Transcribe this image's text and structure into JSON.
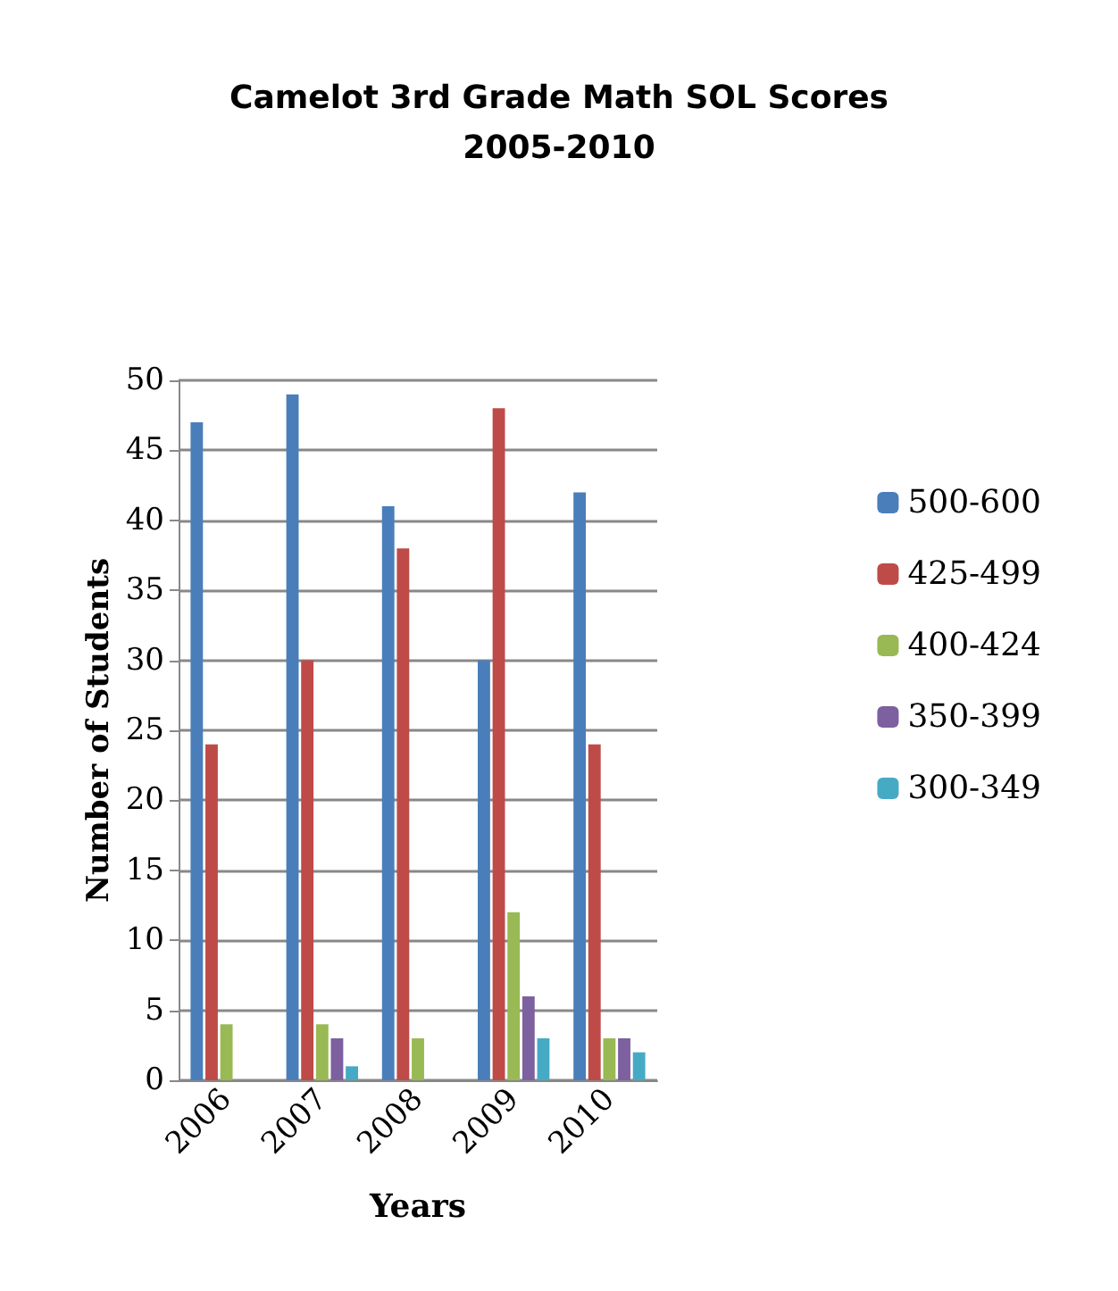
{
  "chart_data": {
    "type": "bar",
    "title": "Camelot 3rd Grade Math SOL Scores\n2005-2010",
    "xlabel": "Years",
    "ylabel": "Number of Students",
    "categories": [
      "2006",
      "2007",
      "2008",
      "2009",
      "2010"
    ],
    "series": [
      {
        "name": "500-600",
        "color": "#4a7ebb",
        "values": [
          47,
          49,
          41,
          30,
          42
        ]
      },
      {
        "name": "425-499",
        "color": "#be4b48",
        "values": [
          24,
          30,
          38,
          48,
          24
        ]
      },
      {
        "name": "400-424",
        "color": "#98b954",
        "values": [
          4,
          4,
          3,
          12,
          3
        ]
      },
      {
        "name": "350-399",
        "color": "#7d60a0",
        "values": [
          0,
          3,
          0,
          6,
          3
        ]
      },
      {
        "name": "300-349",
        "color": "#46aac5",
        "values": [
          0,
          1,
          0,
          3,
          2
        ]
      }
    ],
    "ylim": [
      0,
      50
    ],
    "yticks": [
      0,
      5,
      10,
      15,
      20,
      25,
      30,
      35,
      40,
      45,
      50
    ],
    "grid": "y",
    "legend": "right"
  }
}
